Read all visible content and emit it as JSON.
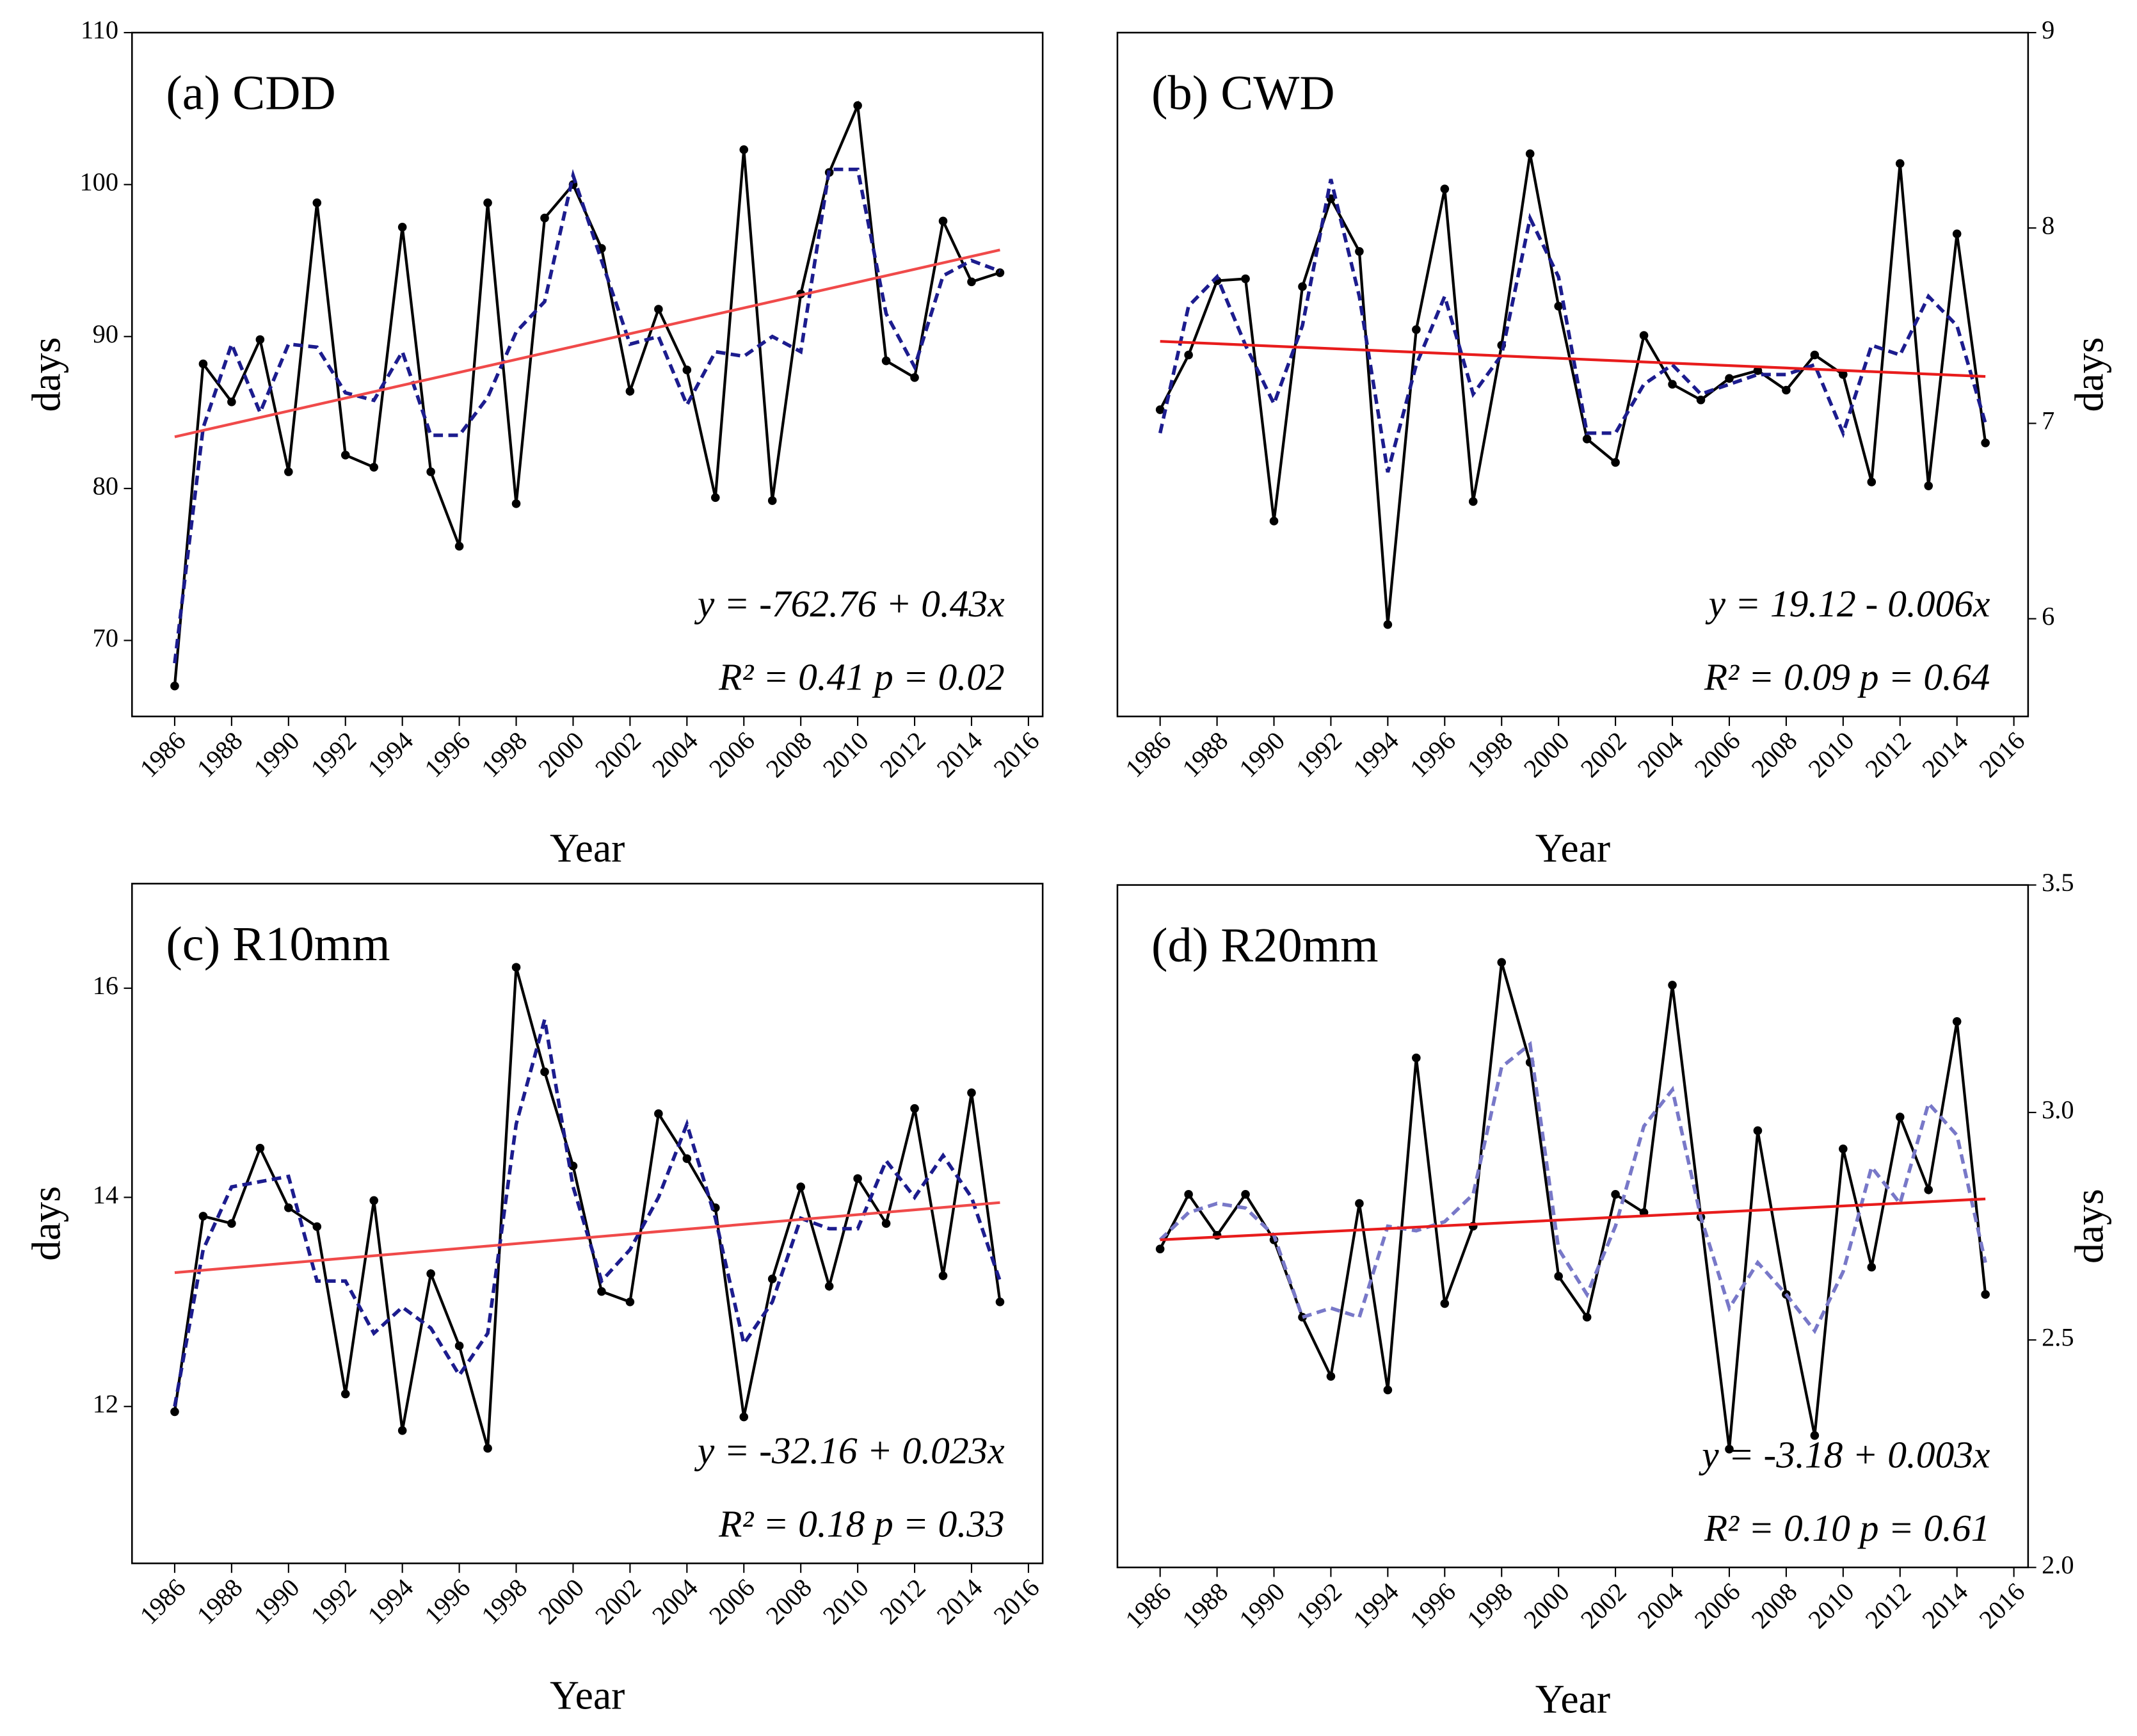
{
  "chart_data": [
    {
      "type": "line",
      "title": "(a) CDD",
      "xlabel": "Year",
      "ylabel": "days",
      "y_axis_side": "left",
      "x": [
        1986,
        1987,
        1988,
        1989,
        1990,
        1991,
        1992,
        1993,
        1994,
        1995,
        1996,
        1997,
        1998,
        1999,
        2000,
        2001,
        2002,
        2003,
        2004,
        2005,
        2006,
        2007,
        2008,
        2009,
        2010,
        2011,
        2012,
        2013,
        2014,
        2015
      ],
      "xlim": [
        1984.5,
        2016.5
      ],
      "xticks": [
        1986,
        1988,
        1990,
        1992,
        1994,
        1996,
        1998,
        2000,
        2002,
        2004,
        2006,
        2008,
        2010,
        2012,
        2014,
        2016
      ],
      "ylim": [
        65,
        110
      ],
      "yticks": [
        70,
        80,
        90,
        100,
        110
      ],
      "series": [
        {
          "color": "#000000",
          "style": "solid",
          "markers": true,
          "values": [
            67,
            88.2,
            85.7,
            89.8,
            81.1,
            98.8,
            82.2,
            81.4,
            97.2,
            81.1,
            76.2,
            98.8,
            79,
            97.8,
            100,
            95.8,
            86.4,
            91.8,
            87.8,
            79.4,
            102.3,
            79.2,
            92.8,
            100.8,
            105.2,
            88.4,
            87.3,
            97.6,
            93.6,
            94.2
          ]
        },
        {
          "color": "#1c1c8e",
          "style": "dashed",
          "markers": false,
          "values": [
            68.5,
            84,
            89.5,
            85,
            89.5,
            89.3,
            86.3,
            85.8,
            89,
            83.5,
            83.5,
            86,
            90.3,
            92.3,
            100.6,
            95,
            89.5,
            90,
            85.5,
            89,
            88.7,
            90,
            89,
            101,
            101,
            91.5,
            88,
            94,
            95,
            94.3
          ]
        },
        {
          "color": "#f04a4a",
          "style": "solid",
          "markers": false,
          "x": [
            1986,
            2015
          ],
          "values": [
            83.4,
            95.7
          ]
        }
      ],
      "annotations": [
        "y = -762.76 + 0.43x",
        "R² = 0.41  p = 0.02"
      ]
    },
    {
      "type": "line",
      "title": "(b) CWD",
      "xlabel": "Year",
      "ylabel": "days",
      "y_axis_side": "right",
      "x": [
        1986,
        1987,
        1988,
        1989,
        1990,
        1991,
        1992,
        1993,
        1994,
        1995,
        1996,
        1997,
        1998,
        1999,
        2000,
        2001,
        2002,
        2003,
        2004,
        2005,
        2006,
        2007,
        2008,
        2009,
        2010,
        2011,
        2012,
        2013,
        2014,
        2015
      ],
      "xlim": [
        1984.5,
        2016.5
      ],
      "xticks": [
        1986,
        1988,
        1990,
        1992,
        1994,
        1996,
        1998,
        2000,
        2002,
        2004,
        2006,
        2008,
        2010,
        2012,
        2014,
        2016
      ],
      "ylim": [
        5.5,
        9
      ],
      "yticks": [
        6,
        7,
        8,
        9
      ],
      "series": [
        {
          "color": "#000000",
          "style": "solid",
          "markers": true,
          "values": [
            7.07,
            7.35,
            7.73,
            7.74,
            6.5,
            7.7,
            8.15,
            7.88,
            5.97,
            7.48,
            8.2,
            6.6,
            7.4,
            8.38,
            7.6,
            6.92,
            6.8,
            7.45,
            7.2,
            7.12,
            7.23,
            7.27,
            7.17,
            7.35,
            7.25,
            6.7,
            8.33,
            6.68,
            7.97,
            6.9
          ]
        },
        {
          "color": "#1c1c8e",
          "style": "dashed",
          "markers": false,
          "values": [
            6.95,
            7.6,
            7.75,
            7.4,
            7.1,
            7.5,
            8.25,
            7.65,
            6.75,
            7.3,
            7.65,
            7.15,
            7.35,
            8.05,
            7.75,
            6.95,
            6.95,
            7.2,
            7.3,
            7.15,
            7.2,
            7.25,
            7.25,
            7.3,
            6.95,
            7.4,
            7.35,
            7.65,
            7.5,
            7.0
          ]
        },
        {
          "color": "#e81c1c",
          "style": "solid",
          "markers": false,
          "x": [
            1986,
            2015
          ],
          "values": [
            7.42,
            7.24
          ]
        }
      ],
      "annotations": [
        "y = 19.12 - 0.006x",
        "R² = 0.09  p = 0.64"
      ]
    },
    {
      "type": "line",
      "title": "(c) R10mm",
      "xlabel": "Year",
      "ylabel": "days",
      "y_axis_side": "left",
      "x": [
        1986,
        1987,
        1988,
        1989,
        1990,
        1991,
        1992,
        1993,
        1994,
        1995,
        1996,
        1997,
        1998,
        1999,
        2000,
        2001,
        2002,
        2003,
        2004,
        2005,
        2006,
        2007,
        2008,
        2009,
        2010,
        2011,
        2012,
        2013,
        2014,
        2015
      ],
      "xlim": [
        1984.5,
        2016.5
      ],
      "xticks": [
        1986,
        1988,
        1990,
        1992,
        1994,
        1996,
        1998,
        2000,
        2002,
        2004,
        2006,
        2008,
        2010,
        2012,
        2014,
        2016
      ],
      "ylim": [
        10.5,
        17
      ],
      "yticks": [
        12,
        14,
        16
      ],
      "series": [
        {
          "color": "#000000",
          "style": "solid",
          "markers": true,
          "values": [
            11.95,
            13.82,
            13.75,
            14.47,
            13.9,
            13.72,
            12.12,
            13.97,
            11.77,
            13.27,
            12.58,
            11.6,
            16.2,
            15.2,
            14.3,
            13.1,
            13.0,
            14.8,
            14.37,
            13.9,
            11.9,
            13.22,
            14.1,
            13.15,
            14.18,
            13.75,
            14.85,
            13.25,
            15.0,
            13.0
          ]
        },
        {
          "color": "#1c1c8e",
          "style": "dashed",
          "markers": false,
          "values": [
            12.0,
            13.5,
            14.1,
            14.15,
            14.2,
            13.2,
            13.2,
            12.7,
            12.95,
            12.75,
            12.3,
            12.7,
            14.7,
            15.7,
            14.1,
            13.2,
            13.5,
            14.0,
            14.7,
            13.8,
            12.6,
            13.0,
            13.8,
            13.7,
            13.7,
            14.35,
            14.0,
            14.4,
            14.0,
            13.2
          ]
        },
        {
          "color": "#f04a4a",
          "style": "solid",
          "markers": false,
          "x": [
            1986,
            2015
          ],
          "values": [
            13.28,
            13.95
          ]
        }
      ],
      "annotations": [
        "y = -32.16 + 0.023x",
        "R² = 0.18  p = 0.33"
      ]
    },
    {
      "type": "line",
      "title": "(d) R20mm",
      "xlabel": "Year",
      "ylabel": "days",
      "y_axis_side": "right",
      "x": [
        1986,
        1987,
        1988,
        1989,
        1990,
        1991,
        1992,
        1993,
        1994,
        1995,
        1996,
        1997,
        1998,
        1999,
        2000,
        2001,
        2002,
        2003,
        2004,
        2005,
        2006,
        2007,
        2008,
        2009,
        2010,
        2011,
        2012,
        2013,
        2014,
        2015
      ],
      "xlim": [
        1984.5,
        2016.5
      ],
      "xticks": [
        1986,
        1988,
        1990,
        1992,
        1994,
        1996,
        1998,
        2000,
        2002,
        2004,
        2006,
        2008,
        2010,
        2012,
        2014,
        2016
      ],
      "ylim": [
        2.0,
        3.5
      ],
      "yticks": [
        {
          "value": 2,
          "label": "2.0"
        },
        2.5,
        {
          "value": 3,
          "label": "3.0"
        },
        3.5
      ],
      "series": [
        {
          "color": "#000000",
          "style": "solid",
          "markers": true,
          "values": [
            2.7,
            2.82,
            2.73,
            2.82,
            2.72,
            2.55,
            2.42,
            2.8,
            2.39,
            3.12,
            2.58,
            2.75,
            3.33,
            3.11,
            2.64,
            2.55,
            2.82,
            2.78,
            3.28,
            2.77,
            2.26,
            2.96,
            2.6,
            2.29,
            2.92,
            2.66,
            2.99,
            2.83,
            3.2,
            2.6
          ]
        },
        {
          "color": "#7878c8",
          "style": "dashed",
          "markers": false,
          "values": [
            2.72,
            2.78,
            2.8,
            2.79,
            2.73,
            2.55,
            2.57,
            2.55,
            2.75,
            2.74,
            2.76,
            2.82,
            3.1,
            3.15,
            2.7,
            2.6,
            2.75,
            2.97,
            3.05,
            2.77,
            2.57,
            2.67,
            2.6,
            2.52,
            2.65,
            2.88,
            2.8,
            3.02,
            2.95,
            2.67
          ]
        },
        {
          "color": "#e81c1c",
          "style": "solid",
          "markers": false,
          "x": [
            1986,
            2015
          ],
          "values": [
            2.72,
            2.81
          ]
        }
      ],
      "annotations": [
        "y = -3.18 + 0.003x",
        "R² = 0.10  p = 0.61"
      ]
    }
  ]
}
